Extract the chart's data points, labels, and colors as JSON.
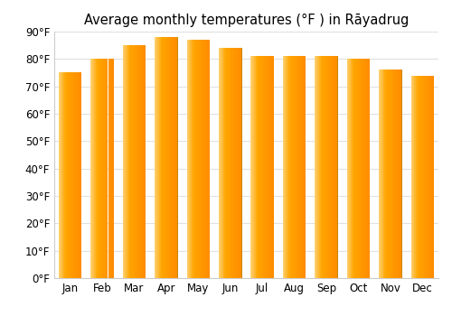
{
  "title": "Average monthly temperatures (°F ) in Rāyadrug",
  "months": [
    "Jan",
    "Feb",
    "Mar",
    "Apr",
    "May",
    "Jun",
    "Jul",
    "Aug",
    "Sep",
    "Oct",
    "Nov",
    "Dec"
  ],
  "values": [
    75,
    80,
    85,
    88,
    87,
    84,
    81,
    81,
    81,
    80,
    76,
    74
  ],
  "bar_color_main": "#FFA500",
  "bar_color_light": "#FFD070",
  "bar_color_edge": "#CC8800",
  "ylim": [
    0,
    90
  ],
  "yticks": [
    0,
    10,
    20,
    30,
    40,
    50,
    60,
    70,
    80,
    90
  ],
  "background_color": "#ffffff",
  "grid_color": "#e0e0e0",
  "title_fontsize": 10.5,
  "tick_fontsize": 8.5
}
